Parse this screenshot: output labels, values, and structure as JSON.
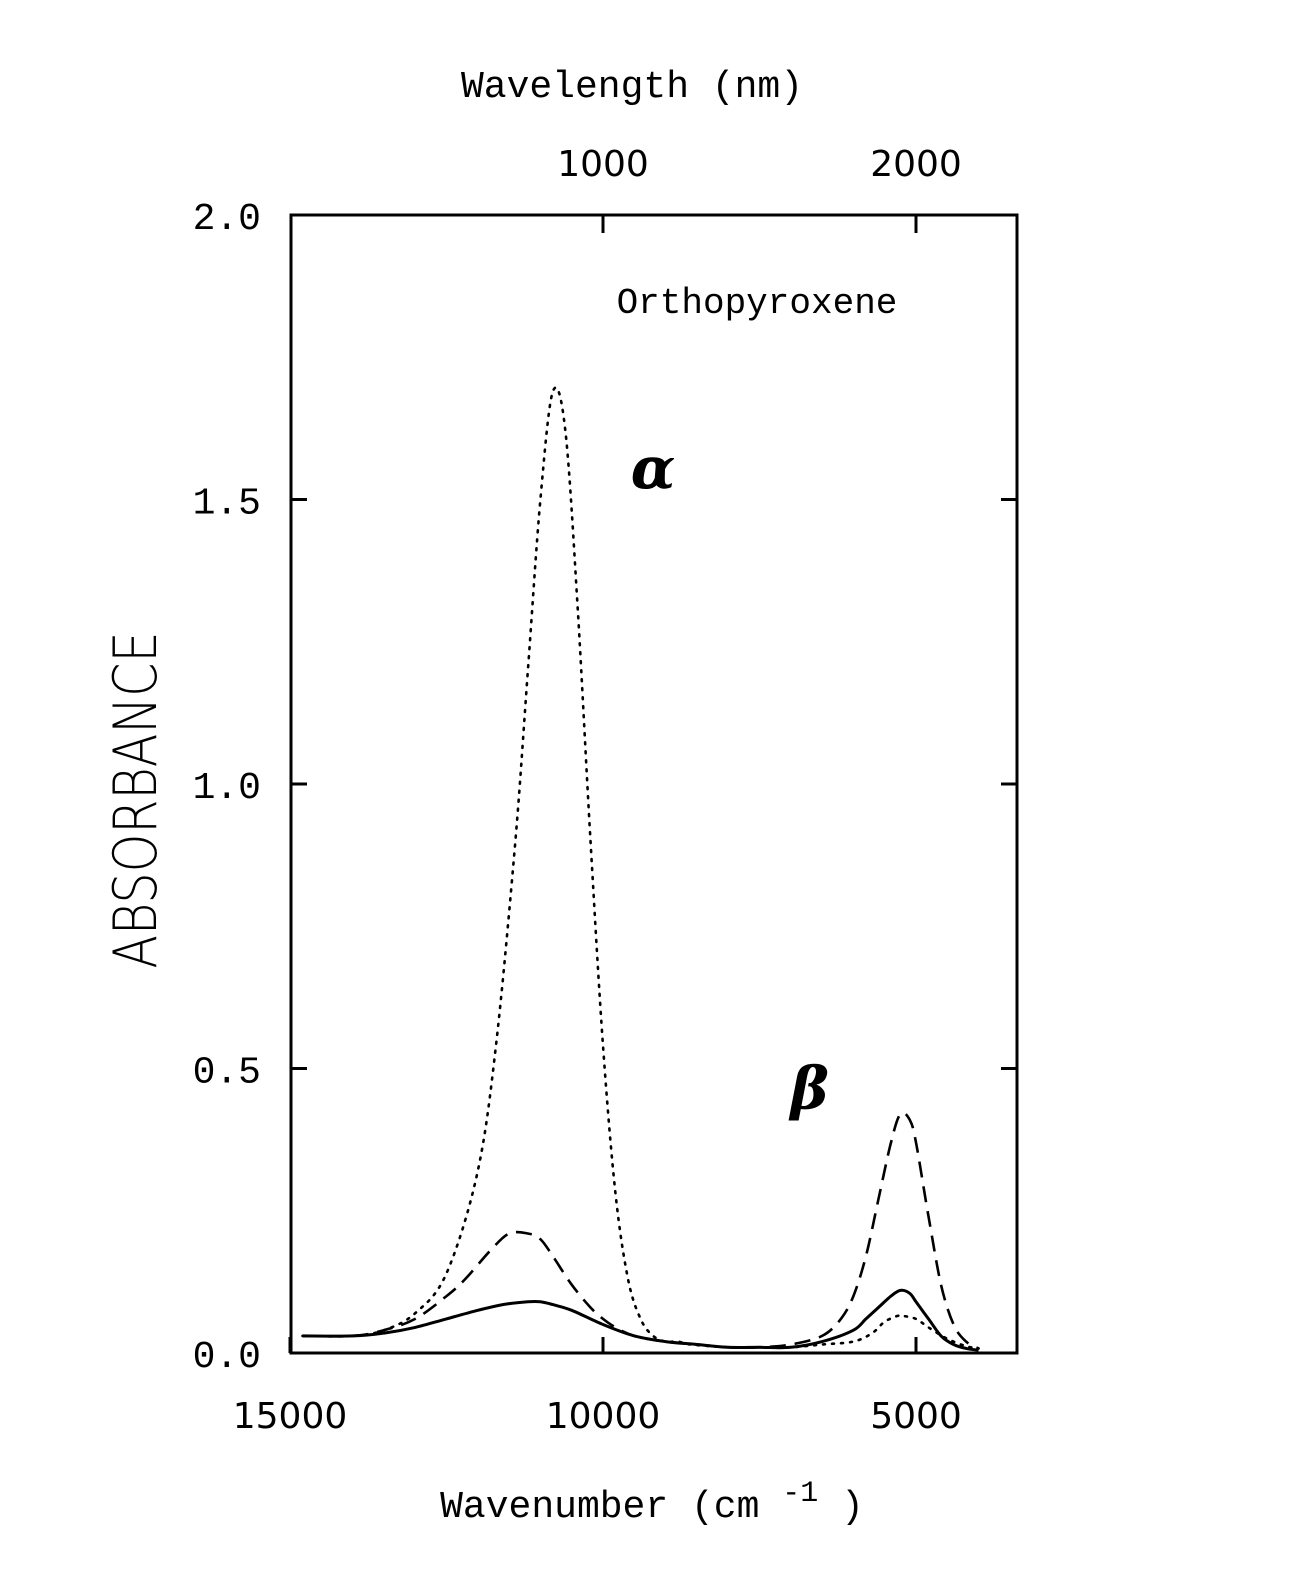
{
  "chart_data": {
    "type": "line",
    "title": "Orthopyroxene",
    "xlabel": "Wavenumber",
    "xlabel_unit": "(cm",
    "xlabel_unit_sup": "-1",
    "xlabel_unit_close": ")",
    "x2label": "Wavelength (nm)",
    "ylabel": "ABSORBANCE",
    "xlim": [
      15000,
      3800
    ],
    "ylim": [
      0.0,
      2.0
    ],
    "xticks": [
      15000,
      10000,
      5000
    ],
    "xtick_labels": [
      "15000",
      "10000",
      "5000"
    ],
    "x2ticks": [
      1000,
      2000
    ],
    "x2tick_labels": [
      "1000",
      "2000"
    ],
    "yticks": [
      0.0,
      0.5,
      1.0,
      1.5,
      2.0
    ],
    "ytick_labels": [
      "0.0",
      "0.5",
      "1.0",
      "1.5",
      "2.0"
    ],
    "annotations": [
      {
        "text": "α",
        "x": 9200,
        "y": 1.52
      },
      {
        "text": "β",
        "x": 6700,
        "y": 0.43
      }
    ],
    "series": [
      {
        "style": "dotted",
        "x": [
          14800,
          14000,
          13500,
          13000,
          12500,
          12000,
          11700,
          11400,
          11200,
          11000,
          10800,
          10600,
          10400,
          10200,
          10000,
          9800,
          9600,
          9400,
          9200,
          9000,
          8800,
          8600,
          8000,
          7500,
          7000,
          6500,
          6000,
          5700,
          5500,
          5300,
          5200,
          5000,
          4800,
          4500,
          4200,
          4000
        ],
        "y": [
          0.03,
          0.03,
          0.04,
          0.07,
          0.14,
          0.32,
          0.55,
          0.9,
          1.2,
          1.5,
          1.69,
          1.62,
          1.3,
          0.9,
          0.54,
          0.28,
          0.13,
          0.06,
          0.03,
          0.02,
          0.02,
          0.015,
          0.01,
          0.01,
          0.01,
          0.015,
          0.02,
          0.035,
          0.055,
          0.065,
          0.065,
          0.06,
          0.045,
          0.025,
          0.012,
          0.008
        ]
      },
      {
        "style": "dashed",
        "x": [
          14800,
          14000,
          13500,
          13000,
          12500,
          12200,
          11800,
          11500,
          11200,
          11000,
          10800,
          10500,
          10200,
          10000,
          9800,
          9500,
          9000,
          8500,
          8000,
          7500,
          7000,
          6500,
          6200,
          6000,
          5800,
          5600,
          5400,
          5250,
          5100,
          5000,
          4800,
          4600,
          4400,
          4200,
          4000
        ],
        "y": [
          0.03,
          0.03,
          0.04,
          0.06,
          0.1,
          0.13,
          0.18,
          0.21,
          0.21,
          0.2,
          0.17,
          0.12,
          0.08,
          0.06,
          0.045,
          0.03,
          0.02,
          0.015,
          0.01,
          0.01,
          0.015,
          0.03,
          0.06,
          0.1,
          0.17,
          0.27,
          0.37,
          0.42,
          0.41,
          0.37,
          0.24,
          0.12,
          0.05,
          0.02,
          0.008
        ]
      },
      {
        "style": "solid",
        "x": [
          14800,
          14000,
          13500,
          13000,
          12500,
          12000,
          11600,
          11200,
          11000,
          10800,
          10500,
          10000,
          9500,
          9000,
          8500,
          8000,
          7500,
          7000,
          6500,
          6000,
          5800,
          5600,
          5400,
          5250,
          5100,
          5000,
          4800,
          4600,
          4400,
          4200,
          4000
        ],
        "y": [
          0.03,
          0.03,
          0.035,
          0.045,
          0.06,
          0.075,
          0.085,
          0.09,
          0.09,
          0.085,
          0.075,
          0.05,
          0.03,
          0.02,
          0.015,
          0.01,
          0.01,
          0.01,
          0.02,
          0.04,
          0.06,
          0.08,
          0.1,
          0.11,
          0.105,
          0.09,
          0.06,
          0.03,
          0.015,
          0.008,
          0.005
        ]
      }
    ]
  }
}
